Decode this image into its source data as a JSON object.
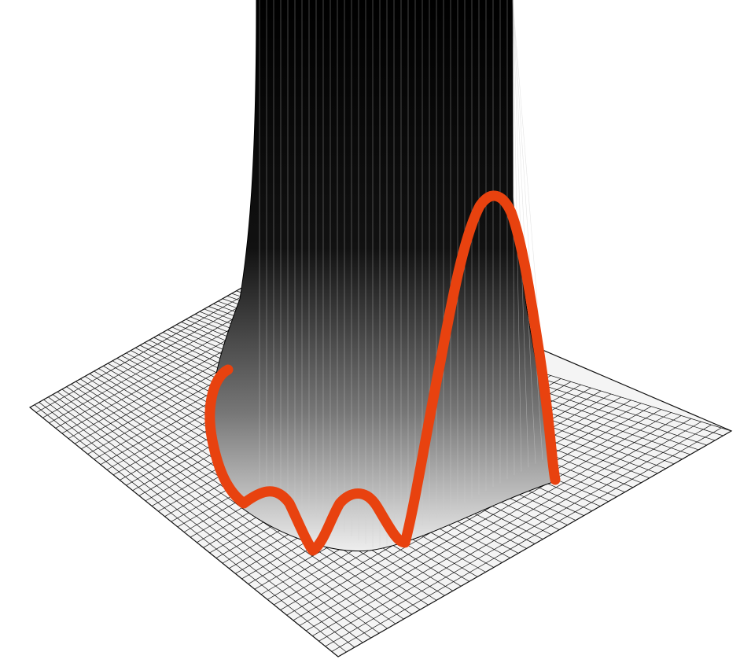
{
  "figure": {
    "kind": "3d-surface-mesh",
    "surface_shading": "grayscale",
    "mesh_line_color": "#111111",
    "overlay_curve_color": "#e8420f",
    "background_color": "#ffffff"
  }
}
